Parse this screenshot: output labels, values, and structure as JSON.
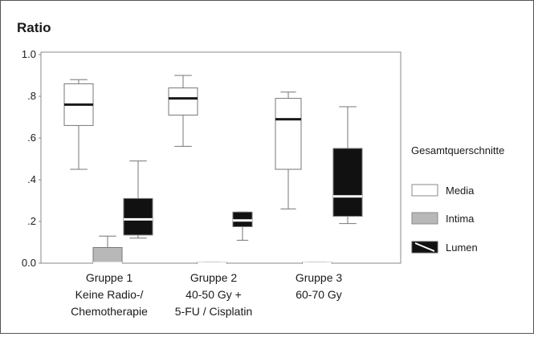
{
  "chart_data": {
    "type": "boxplot",
    "ylabel": "Ratio",
    "ylim": [
      0,
      1.0
    ],
    "yticks": [
      0.0,
      0.2,
      0.4,
      0.6,
      0.8,
      1.0
    ],
    "ytick_labels": [
      "0.0",
      ".2",
      ".4",
      ".6",
      ".8",
      "1.0"
    ],
    "categories": [
      {
        "lines": [
          "Gruppe 1",
          "Keine Radio-/",
          "Chemotherapie"
        ]
      },
      {
        "lines": [
          "Gruppe 2",
          "40-50 Gy +",
          "5-FU / Cisplatin"
        ]
      },
      {
        "lines": [
          "Gruppe 3",
          "60-70 Gy"
        ]
      }
    ],
    "legend": {
      "title": "Gesamtquerschnitte",
      "position": "right"
    },
    "series": [
      {
        "name": "Media",
        "color": "#ffffff",
        "median_color": "#1a1a1a",
        "boxes": [
          {
            "min": 0.45,
            "q1": 0.66,
            "median": 0.76,
            "q3": 0.86,
            "max": 0.88
          },
          {
            "min": 0.56,
            "q1": 0.71,
            "median": 0.79,
            "q3": 0.84,
            "max": 0.9
          },
          {
            "min": 0.26,
            "q1": 0.45,
            "median": 0.69,
            "q3": 0.79,
            "max": 0.82
          }
        ]
      },
      {
        "name": "Intima",
        "color": "#b8b8b8",
        "median_color": "#ffffff",
        "boxes": [
          {
            "min": 0.0,
            "q1": 0.0,
            "median": 0.0,
            "q3": 0.075,
            "max": 0.13
          },
          {
            "min": 0.0,
            "q1": 0.0,
            "median": 0.0,
            "q3": 0.005,
            "max": 0.005
          },
          {
            "min": 0.0,
            "q1": 0.0,
            "median": 0.0,
            "q3": 0.005,
            "max": 0.005
          }
        ]
      },
      {
        "name": "Lumen",
        "color": "#111111",
        "median_color": "#ffffff",
        "boxes": [
          {
            "min": 0.12,
            "q1": 0.135,
            "median": 0.21,
            "q3": 0.31,
            "max": 0.49
          },
          {
            "min": 0.11,
            "q1": 0.175,
            "median": 0.205,
            "q3": 0.245,
            "max": 0.245
          },
          {
            "min": 0.19,
            "q1": 0.225,
            "median": 0.32,
            "q3": 0.55,
            "max": 0.75
          }
        ]
      }
    ]
  }
}
